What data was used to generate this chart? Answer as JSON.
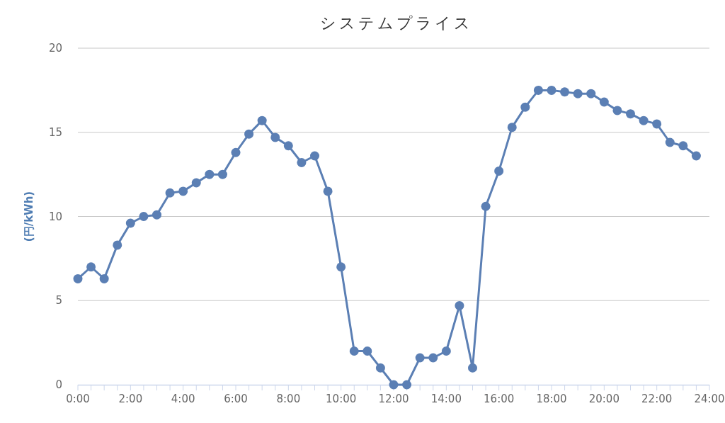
{
  "chart_data": {
    "type": "line",
    "title": "システムプライス",
    "ylabel": "(円/kWh)",
    "x": [
      0,
      0.5,
      1,
      1.5,
      2,
      2.5,
      3,
      3.5,
      4,
      4.5,
      5,
      5.5,
      6,
      6.5,
      7,
      7.5,
      8,
      8.5,
      9,
      9.5,
      10,
      10.5,
      11,
      11.5,
      12,
      12.5,
      13,
      13.5,
      14,
      14.5,
      15,
      15.5,
      16,
      16.5,
      17,
      17.5,
      18,
      18.5,
      19,
      19.5,
      20,
      20.5,
      21,
      21.5,
      22,
      22.5,
      23,
      23.5
    ],
    "series": [
      {
        "color": "#5b7fb4",
        "values": [
          6.3,
          7.0,
          6.3,
          8.3,
          9.6,
          10.0,
          10.1,
          11.4,
          11.5,
          12.0,
          12.5,
          12.5,
          13.8,
          14.9,
          15.7,
          14.7,
          14.2,
          13.2,
          13.6,
          11.5,
          7.0,
          2.0,
          2.0,
          1.0,
          0.0,
          0.0,
          1.6,
          1.6,
          2.0,
          4.7,
          1.0,
          10.6,
          12.7,
          15.3,
          16.5,
          17.5,
          17.5,
          17.4,
          17.3,
          17.3,
          16.8,
          16.3,
          16.1,
          15.7,
          15.5,
          14.4,
          14.2,
          13.6
        ]
      }
    ],
    "xlim": [
      0,
      24
    ],
    "xticks": [
      {
        "value": 0,
        "label": "0:00"
      },
      {
        "value": 0.5,
        "label": null
      },
      {
        "value": 1,
        "label": null
      },
      {
        "value": 1.5,
        "label": null
      },
      {
        "value": 2,
        "label": "2:00"
      },
      {
        "value": 2.5,
        "label": null
      },
      {
        "value": 3,
        "label": null
      },
      {
        "value": 3.5,
        "label": null
      },
      {
        "value": 4,
        "label": "4:00"
      },
      {
        "value": 4.5,
        "label": null
      },
      {
        "value": 5,
        "label": null
      },
      {
        "value": 5.5,
        "label": null
      },
      {
        "value": 6,
        "label": "6:00"
      },
      {
        "value": 6.5,
        "label": null
      },
      {
        "value": 7,
        "label": null
      },
      {
        "value": 7.5,
        "label": null
      },
      {
        "value": 8,
        "label": "8:00"
      },
      {
        "value": 8.5,
        "label": null
      },
      {
        "value": 9,
        "label": null
      },
      {
        "value": 9.5,
        "label": null
      },
      {
        "value": 10,
        "label": "10:00"
      },
      {
        "value": 10.5,
        "label": null
      },
      {
        "value": 11,
        "label": null
      },
      {
        "value": 11.5,
        "label": null
      },
      {
        "value": 12,
        "label": "12:00"
      },
      {
        "value": 12.5,
        "label": null
      },
      {
        "value": 13,
        "label": null
      },
      {
        "value": 13.5,
        "label": null
      },
      {
        "value": 14,
        "label": "14:00"
      },
      {
        "value": 14.5,
        "label": null
      },
      {
        "value": 15,
        "label": null
      },
      {
        "value": 15.5,
        "label": null
      },
      {
        "value": 16,
        "label": "16:00"
      },
      {
        "value": 16.5,
        "label": null
      },
      {
        "value": 17,
        "label": null
      },
      {
        "value": 17.5,
        "label": null
      },
      {
        "value": 18,
        "label": "18:00"
      },
      {
        "value": 18.5,
        "label": null
      },
      {
        "value": 19,
        "label": null
      },
      {
        "value": 19.5,
        "label": null
      },
      {
        "value": 20,
        "label": "20:00"
      },
      {
        "value": 20.5,
        "label": null
      },
      {
        "value": 21,
        "label": null
      },
      {
        "value": 21.5,
        "label": null
      },
      {
        "value": 22,
        "label": "22:00"
      },
      {
        "value": 22.5,
        "label": null
      },
      {
        "value": 23,
        "label": null
      },
      {
        "value": 23.5,
        "label": null
      },
      {
        "value": 24,
        "label": "24:00"
      }
    ],
    "ylim": [
      0,
      20
    ],
    "yticks": [
      0,
      5,
      10,
      15,
      20
    ],
    "grid": "y",
    "marker": "circle",
    "line_style": "solid"
  }
}
